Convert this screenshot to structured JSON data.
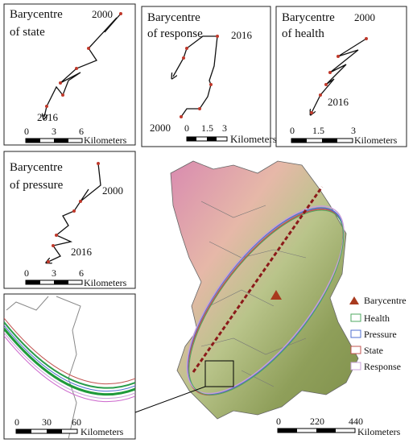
{
  "panels": [
    {
      "title": [
        "Barycentre",
        "of state"
      ],
      "years": [
        "2000",
        "2016"
      ],
      "scale": {
        "labels": [
          "0",
          "3",
          "6"
        ],
        "unit": "Kilometers"
      }
    },
    {
      "title": [
        "Barycentre",
        "of response"
      ],
      "years": [
        "2016",
        "2000"
      ],
      "scale": {
        "labels": [
          "0",
          "1.5",
          "3"
        ],
        "unit": "Kilometers"
      }
    },
    {
      "title": [
        "Barycentre",
        "of health"
      ],
      "years": [
        "2000",
        "2016"
      ],
      "scale": {
        "labels": [
          "0",
          "1.5",
          "3"
        ],
        "unit": "Kilometers"
      }
    },
    {
      "title": [
        "Barycentre",
        "of pressure"
      ],
      "years": [
        "2000",
        "2016"
      ],
      "scale": {
        "labels": [
          "0",
          "3",
          "6"
        ],
        "unit": "Kilometers"
      }
    }
  ],
  "inset": {
    "scale": {
      "labels": [
        "0",
        "30",
        "60"
      ],
      "unit": "Kilometers"
    }
  },
  "main_map": {
    "legend": [
      "Barycentre",
      "Health",
      "Pressure",
      "State",
      "Response"
    ],
    "scale": {
      "labels": [
        "0",
        "220",
        "440"
      ],
      "unit": "Kilometers"
    }
  }
}
